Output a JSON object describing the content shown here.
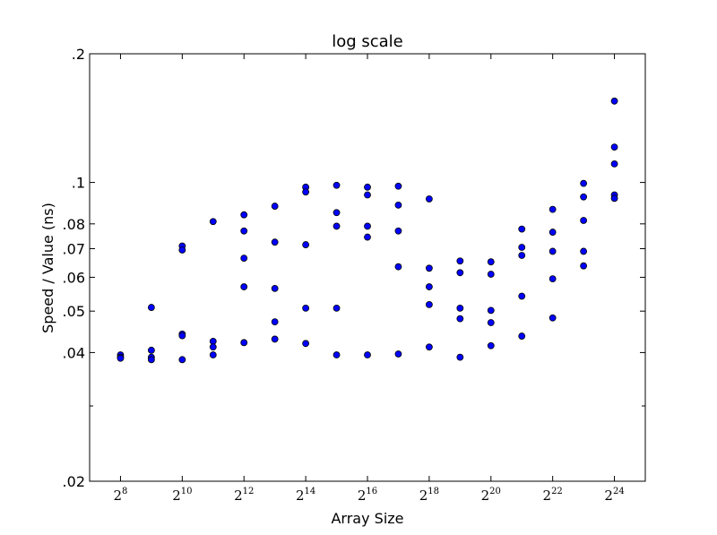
{
  "chart_data": {
    "type": "scatter",
    "title": "log scale",
    "xlabel": "Array Size",
    "ylabel": "Speed / Value (ns)",
    "x_scale": "log2",
    "y_scale": "log",
    "xlim": [
      7,
      25
    ],
    "ylim": [
      0.02,
      0.2
    ],
    "grid": false,
    "marker_color": "#0000ff",
    "marker_edge_color": "#000000",
    "x_ticks": [
      {
        "base": "2",
        "exp": "8",
        "value": 8
      },
      {
        "base": "2",
        "exp": "10",
        "value": 10
      },
      {
        "base": "2",
        "exp": "12",
        "value": 12
      },
      {
        "base": "2",
        "exp": "14",
        "value": 14
      },
      {
        "base": "2",
        "exp": "16",
        "value": 16
      },
      {
        "base": "2",
        "exp": "18",
        "value": 18
      },
      {
        "base": "2",
        "exp": "20",
        "value": 20
      },
      {
        "base": "2",
        "exp": "22",
        "value": 22
      },
      {
        "base": "2",
        "exp": "24",
        "value": 24
      }
    ],
    "y_ticks": [
      {
        "label": ".02",
        "value": 0.02
      },
      {
        "label": ".04",
        "value": 0.04
      },
      {
        "label": ".05",
        "value": 0.05
      },
      {
        "label": ".06",
        "value": 0.06
      },
      {
        "label": ".07",
        "value": 0.07
      },
      {
        "label": ".08",
        "value": 0.08
      },
      {
        "label": ".1",
        "value": 0.1
      },
      {
        "label": ".2",
        "value": 0.2
      }
    ],
    "y_minor_ticks": [
      0.03
    ],
    "points": [
      [
        8,
        0.0395
      ],
      [
        8,
        0.039
      ],
      [
        8,
        0.0388
      ],
      [
        9,
        0.051
      ],
      [
        9,
        0.0405
      ],
      [
        9,
        0.039
      ],
      [
        9,
        0.0385
      ],
      [
        10,
        0.071
      ],
      [
        10,
        0.0695
      ],
      [
        10,
        0.0442
      ],
      [
        10,
        0.0438
      ],
      [
        10,
        0.0385
      ],
      [
        11,
        0.081
      ],
      [
        11,
        0.0425
      ],
      [
        11,
        0.0412
      ],
      [
        11,
        0.0395
      ],
      [
        12,
        0.084
      ],
      [
        12,
        0.077
      ],
      [
        12,
        0.0665
      ],
      [
        12,
        0.057
      ],
      [
        12,
        0.0422
      ],
      [
        13,
        0.088
      ],
      [
        13,
        0.0725
      ],
      [
        13,
        0.0565
      ],
      [
        13,
        0.0472
      ],
      [
        13,
        0.043
      ],
      [
        14,
        0.0975
      ],
      [
        14,
        0.095
      ],
      [
        14,
        0.0715
      ],
      [
        14,
        0.0508
      ],
      [
        14,
        0.042
      ],
      [
        15,
        0.0985
      ],
      [
        15,
        0.085
      ],
      [
        15,
        0.079
      ],
      [
        15,
        0.0508
      ],
      [
        15,
        0.0395
      ],
      [
        16,
        0.0975
      ],
      [
        16,
        0.0935
      ],
      [
        16,
        0.079
      ],
      [
        16,
        0.0745
      ],
      [
        16,
        0.0395
      ],
      [
        17,
        0.098
      ],
      [
        17,
        0.0885
      ],
      [
        17,
        0.077
      ],
      [
        17,
        0.0635
      ],
      [
        17,
        0.0397
      ],
      [
        18,
        0.0915
      ],
      [
        18,
        0.063
      ],
      [
        18,
        0.057
      ],
      [
        18,
        0.0518
      ],
      [
        18,
        0.0412
      ],
      [
        19,
        0.0655
      ],
      [
        19,
        0.0615
      ],
      [
        19,
        0.0508
      ],
      [
        19,
        0.048
      ],
      [
        19,
        0.039
      ],
      [
        20,
        0.0652
      ],
      [
        20,
        0.061
      ],
      [
        20,
        0.0502
      ],
      [
        20,
        0.047
      ],
      [
        20,
        0.0415
      ],
      [
        21,
        0.0778
      ],
      [
        21,
        0.0705
      ],
      [
        21,
        0.0675
      ],
      [
        21,
        0.0542
      ],
      [
        21,
        0.0437
      ],
      [
        22,
        0.0865
      ],
      [
        22,
        0.0765
      ],
      [
        22,
        0.069
      ],
      [
        22,
        0.0595
      ],
      [
        22,
        0.0482
      ],
      [
        23,
        0.0995
      ],
      [
        23,
        0.0925
      ],
      [
        23,
        0.0815
      ],
      [
        23,
        0.069
      ],
      [
        23,
        0.0638
      ],
      [
        24,
        0.155
      ],
      [
        24,
        0.121
      ],
      [
        24,
        0.1105
      ],
      [
        24,
        0.0935
      ],
      [
        24,
        0.0918
      ]
    ]
  }
}
